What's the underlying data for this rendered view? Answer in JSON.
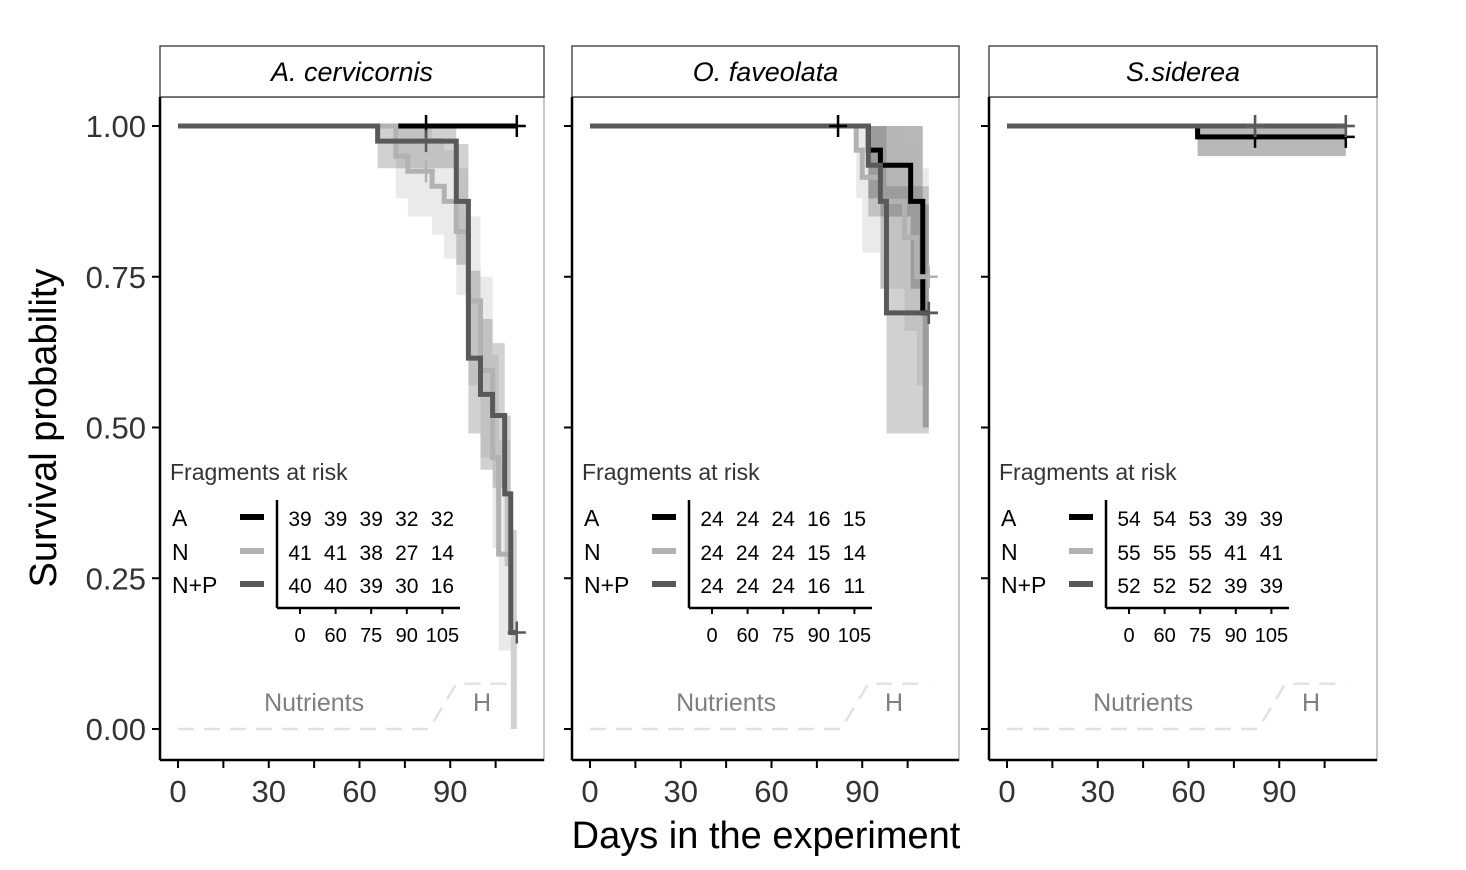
{
  "figure": {
    "y_axis_label": "Survival probability",
    "x_axis_label": "Days in the experiment"
  },
  "colors": {
    "A": "#000000",
    "N": "#b2b2b2",
    "N+P": "#595959",
    "strip_bg": "#ffffff",
    "phase_line": "#e2e2e2",
    "phase_text": "#7f7f7f"
  },
  "chart_data": [
    {
      "type": "line",
      "subtype": "kaplan-meier",
      "title": "A. cervicornis",
      "xlabel": "Days in the experiment",
      "ylabel": "Survival probability",
      "xlim": [
        -4,
        116
      ],
      "ylim": [
        -0.05,
        1.05
      ],
      "x_ticks": [
        0,
        30,
        60,
        90
      ],
      "y_ticks": [
        "0.00",
        "0.25",
        "0.50",
        "0.75",
        "1.00"
      ],
      "series": [
        {
          "name": "A",
          "x": [
            0,
            112
          ],
          "y": [
            1.0,
            1.0
          ],
          "censor_x": [
            82,
            112
          ],
          "ci_lower": [
            1.0,
            1.0
          ],
          "ci_upper": [
            1.0,
            1.0
          ]
        },
        {
          "name": "N",
          "x": [
            0,
            72,
            76,
            84,
            88,
            92,
            96,
            100,
            104,
            106,
            110
          ],
          "y": [
            1.0,
            0.95,
            0.925,
            0.9,
            0.875,
            0.825,
            0.71,
            0.595,
            0.45,
            0.29,
            0.29
          ],
          "censor_x": [
            82
          ],
          "ci_lower": [
            1.0,
            0.88,
            0.85,
            0.82,
            0.78,
            0.72,
            0.57,
            0.45,
            0.3,
            0.13,
            0.13
          ],
          "ci_upper": [
            1.0,
            1.0,
            1.0,
            0.98,
            0.96,
            0.93,
            0.85,
            0.75,
            0.62,
            0.48,
            0.48
          ]
        },
        {
          "name": "N+P",
          "x": [
            0,
            66,
            92,
            96,
            100,
            104,
            108,
            110,
            112
          ],
          "y": [
            1.0,
            0.975,
            0.875,
            0.615,
            0.555,
            0.52,
            0.39,
            0.16,
            0.16
          ],
          "censor_x": [
            82,
            112
          ],
          "ci_lower": [
            1.0,
            0.93,
            0.77,
            0.49,
            0.43,
            0.4,
            0.27,
            0.0,
            0.0
          ],
          "ci_upper": [
            1.0,
            1.0,
            0.97,
            0.76,
            0.68,
            0.64,
            0.52,
            0.33,
            0.33
          ]
        }
      ],
      "risk_table": {
        "title": "Fragments at risk",
        "timepoints": [
          "0",
          "60",
          "75",
          "90",
          "105"
        ],
        "rows": [
          {
            "group": "A",
            "counts": [
              "39",
              "39",
              "39",
              "32",
              "32"
            ]
          },
          {
            "group": "N",
            "counts": [
              "41",
              "41",
              "38",
              "27",
              "14"
            ]
          },
          {
            "group": "N+P",
            "counts": [
              "40",
              "40",
              "39",
              "30",
              "16"
            ]
          }
        ]
      },
      "phases": [
        {
          "label": "Nutrients"
        },
        {
          "label": "H"
        }
      ]
    },
    {
      "type": "line",
      "subtype": "kaplan-meier",
      "title": "O. faveolata",
      "xlabel": "Days in the experiment",
      "ylabel": "Survival probability",
      "xlim": [
        -4,
        116
      ],
      "ylim": [
        -0.05,
        1.05
      ],
      "x_ticks": [
        0,
        30,
        60,
        90
      ],
      "y_ticks": [
        "0.00",
        "0.25",
        "0.50",
        "0.75",
        "1.00"
      ],
      "series": [
        {
          "name": "A",
          "x": [
            0,
            92,
            96,
            106,
            110,
            112
          ],
          "y": [
            1.0,
            0.96,
            0.935,
            0.875,
            0.69,
            0.69
          ],
          "censor_x": [
            82,
            112
          ],
          "ci_lower": [
            1.0,
            0.88,
            0.85,
            0.73,
            0.5,
            0.5
          ],
          "ci_upper": [
            1.0,
            1.0,
            1.0,
            1.0,
            0.87,
            0.87
          ]
        },
        {
          "name": "N",
          "x": [
            0,
            88,
            90,
            96,
            104,
            108,
            112
          ],
          "y": [
            1.0,
            0.96,
            0.915,
            0.875,
            0.815,
            0.75,
            0.75
          ],
          "censor_x": [
            112
          ],
          "ci_lower": [
            1.0,
            0.88,
            0.79,
            0.73,
            0.66,
            0.57,
            0.57
          ],
          "ci_upper": [
            1.0,
            1.0,
            1.0,
            1.0,
            0.97,
            0.93,
            0.93
          ]
        },
        {
          "name": "N+P",
          "x": [
            0,
            92,
            96,
            98,
            108,
            112
          ],
          "y": [
            1.0,
            0.935,
            0.875,
            0.69,
            0.69,
            0.69
          ],
          "censor_x": [
            112
          ],
          "ci_lower": [
            1.0,
            0.85,
            0.73,
            0.49,
            0.49,
            0.49
          ],
          "ci_upper": [
            1.0,
            1.0,
            1.0,
            0.9,
            0.9,
            0.9
          ]
        }
      ],
      "risk_table": {
        "title": "Fragments at risk",
        "timepoints": [
          "0",
          "60",
          "75",
          "90",
          "105"
        ],
        "rows": [
          {
            "group": "A",
            "counts": [
              "24",
              "24",
              "24",
              "16",
              "15"
            ]
          },
          {
            "group": "N",
            "counts": [
              "24",
              "24",
              "24",
              "15",
              "14"
            ]
          },
          {
            "group": "N+P",
            "counts": [
              "24",
              "24",
              "24",
              "16",
              "11"
            ]
          }
        ]
      },
      "phases": [
        {
          "label": "Nutrients"
        },
        {
          "label": "H"
        }
      ]
    },
    {
      "type": "line",
      "subtype": "kaplan-meier",
      "title": "S.siderea",
      "xlabel": "Days in the experiment",
      "ylabel": "Survival probability",
      "xlim": [
        -4,
        116
      ],
      "ylim": [
        -0.05,
        1.05
      ],
      "x_ticks": [
        0,
        30,
        60,
        90
      ],
      "y_ticks": [
        "0.00",
        "0.25",
        "0.50",
        "0.75",
        "1.00"
      ],
      "series": [
        {
          "name": "A",
          "x": [
            0,
            63,
            112
          ],
          "y": [
            1.0,
            0.982,
            0.982
          ],
          "censor_x": [
            82,
            112
          ],
          "ci_lower": [
            1.0,
            0.95,
            0.95
          ],
          "ci_upper": [
            1.0,
            1.0,
            1.0
          ]
        },
        {
          "name": "N",
          "x": [
            0,
            112
          ],
          "y": [
            1.0,
            1.0
          ],
          "censor_x": [
            82,
            112
          ],
          "ci_lower": [
            1.0,
            1.0
          ],
          "ci_upper": [
            1.0,
            1.0
          ]
        },
        {
          "name": "N+P",
          "x": [
            0,
            112
          ],
          "y": [
            1.0,
            1.0
          ],
          "censor_x": [
            82,
            112
          ],
          "ci_lower": [
            1.0,
            1.0
          ],
          "ci_upper": [
            1.0,
            1.0
          ]
        }
      ],
      "risk_table": {
        "title": "Fragments at risk",
        "timepoints": [
          "0",
          "60",
          "75",
          "90",
          "105"
        ],
        "rows": [
          {
            "group": "A",
            "counts": [
              "54",
              "54",
              "53",
              "39",
              "39"
            ]
          },
          {
            "group": "N",
            "counts": [
              "55",
              "55",
              "55",
              "41",
              "41"
            ]
          },
          {
            "group": "N+P",
            "counts": [
              "52",
              "52",
              "52",
              "39",
              "39"
            ]
          }
        ]
      },
      "phases": [
        {
          "label": "Nutrients"
        },
        {
          "label": "H"
        }
      ]
    }
  ]
}
